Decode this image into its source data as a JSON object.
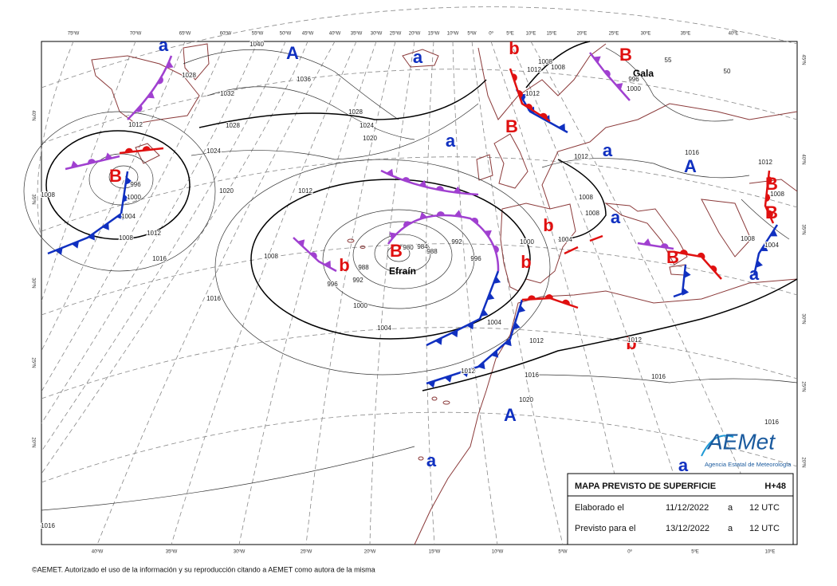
{
  "map": {
    "top_longitudes": [
      "75ºW",
      "70ºW",
      "65ºW",
      "60ºW",
      "55ºW",
      "50ºW",
      "45ºW",
      "40ºW",
      "35ºW",
      "30ºW",
      "25ºW",
      "20ºW",
      "15ºW",
      "10ºW",
      "5ºW",
      "0º",
      "5ºE",
      "10ºE",
      "15ºE",
      "20ºE",
      "25ºE",
      "30ºE",
      "35ºE",
      "40ºE"
    ],
    "bottom_longitudes": [
      "40ºW",
      "35ºW",
      "30ºW",
      "25ºW",
      "20ºW",
      "15ºW",
      "10ºW",
      "5ºW",
      "0º",
      "5ºE",
      "10ºE"
    ],
    "left_latitudes": [
      "40ºN",
      "35ºN",
      "30ºN",
      "25ºN",
      "20ºN"
    ],
    "right_latitudes": [
      "45ºN",
      "40ºN",
      "35ºN",
      "30ºN",
      "25ºN",
      "20ºN"
    ],
    "pressure_centers": [
      "a",
      "A",
      "a",
      "b",
      "B",
      "B",
      "a",
      "a",
      "A",
      "B",
      "b",
      "a",
      "B",
      "b",
      "b",
      "B",
      "a",
      "b",
      "B",
      "B",
      "A",
      "a",
      "a"
    ],
    "storm_names": [
      "Efraín",
      "Gala"
    ],
    "isobar_labels": [
      "1028",
      "1032",
      "1028",
      "1028",
      "1024",
      "1020",
      "1036",
      "1040",
      "1012",
      "1024",
      "1020",
      "1012",
      "1008",
      "1008",
      "1012",
      "1016",
      "1016",
      "1008",
      "996",
      "992",
      "988",
      "980",
      "984",
      "988",
      "992",
      "996",
      "1000",
      "1004",
      "1004",
      "1012",
      "1012",
      "1016",
      "1020",
      "1012",
      "1008",
      "1008",
      "1000",
      "1004",
      "1012",
      "1016",
      "1016",
      "1012",
      "1008",
      "1008",
      "1004",
      "1016",
      "1016",
      "1012",
      "1008",
      "1008",
      "1000",
      "996",
      "1012",
      "996",
      "1000",
      "1004",
      "55",
      "50"
    ]
  },
  "logo": {
    "name": "AEMet",
    "subtitle": "Agencia Estatal de Meteorología"
  },
  "info_box": {
    "title": "MAPA PREVISTO DE SUPERFICIE",
    "range": "H+48",
    "rows": [
      [
        "Elaborado el",
        "11/12/2022",
        "a",
        "12 UTC"
      ],
      [
        "Previsto para el",
        "13/12/2022",
        "a",
        "12 UTC"
      ]
    ]
  },
  "footer": "©AEMET. Autorizado el uso de la información y su reproducción citando a AEMET como autora de la misma"
}
